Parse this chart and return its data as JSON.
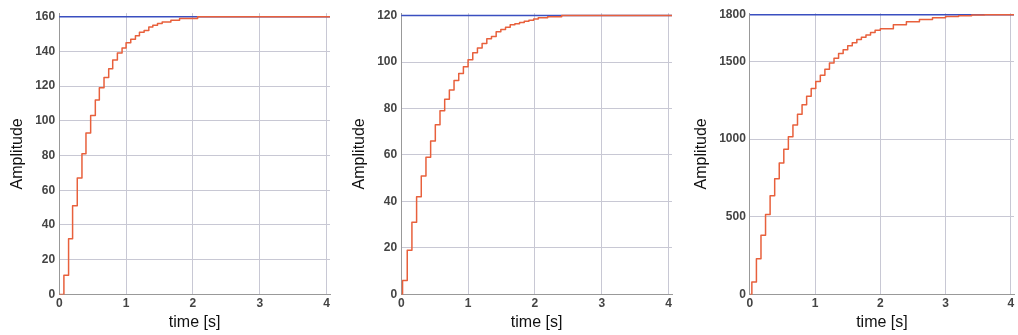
{
  "chart_data": [
    {
      "type": "step",
      "xlabel": "time [s]",
      "ylabel": "Amplitude",
      "xlim": [
        0,
        4.05
      ],
      "xticks": [
        0,
        1,
        2,
        3,
        4
      ],
      "ylim": [
        0,
        162
      ],
      "yticks": [
        0,
        20,
        40,
        60,
        80,
        100,
        120,
        140,
        160
      ],
      "grid": true,
      "legend": false,
      "series": [
        {
          "color": "#e8603c",
          "x": [
            0,
            0.07,
            0.14,
            0.2,
            0.27,
            0.34,
            0.4,
            0.47,
            0.54,
            0.6,
            0.67,
            0.74,
            0.8,
            0.87,
            0.94,
            1.0,
            1.07,
            1.14,
            1.2,
            1.27,
            1.34,
            1.4,
            1.47,
            1.54,
            1.6,
            1.67,
            1.74,
            1.8,
            1.87,
            1.94,
            2.0,
            2.07,
            2.14,
            2.2,
            4.05
          ],
          "values": [
            0,
            11,
            32,
            51,
            67,
            81,
            93,
            103,
            112,
            119,
            125,
            130,
            135,
            139,
            142,
            145,
            147,
            149,
            151,
            152,
            154,
            155,
            156,
            157,
            157,
            158,
            158,
            159,
            159,
            159,
            159,
            160,
            160,
            160,
            160
          ]
        }
      ],
      "ref_lines": [
        {
          "axis": "y",
          "value": 160,
          "color": "#3a4fc0"
        }
      ]
    },
    {
      "type": "step",
      "xlabel": "time [s]",
      "ylabel": "Amplitude",
      "xlim": [
        0,
        4.05
      ],
      "xticks": [
        0,
        1,
        2,
        3,
        4
      ],
      "ylim": [
        0,
        121
      ],
      "yticks": [
        0,
        20,
        40,
        60,
        80,
        100,
        120
      ],
      "grid": true,
      "legend": false,
      "series": [
        {
          "color": "#e8603c",
          "x": [
            0,
            0.02,
            0.09,
            0.16,
            0.23,
            0.3,
            0.37,
            0.44,
            0.51,
            0.58,
            0.65,
            0.72,
            0.79,
            0.86,
            0.93,
            1.0,
            1.07,
            1.14,
            1.21,
            1.28,
            1.35,
            1.42,
            1.49,
            1.56,
            1.63,
            1.7,
            1.77,
            1.84,
            1.91,
            1.98,
            2.05,
            2.12,
            2.19,
            2.26,
            2.33,
            2.4,
            2.47,
            2.54,
            2.61,
            2.7,
            4.05
          ],
          "values": [
            0,
            6,
            19,
            31,
            42,
            51,
            59,
            66,
            73,
            79,
            84,
            88,
            92,
            95,
            98,
            101,
            104,
            106,
            108,
            110,
            111,
            113,
            114,
            115,
            116,
            116.5,
            117,
            117.5,
            118,
            118.5,
            119,
            119,
            119.5,
            119.5,
            119.5,
            120,
            120,
            120,
            120,
            120,
            120
          ]
        }
      ],
      "ref_lines": [
        {
          "axis": "y",
          "value": 120,
          "color": "#3a4fc0"
        }
      ]
    },
    {
      "type": "step",
      "xlabel": "time [s]",
      "ylabel": "Amplitude",
      "xlim": [
        0,
        4.05
      ],
      "xticks": [
        0,
        1,
        2,
        3,
        4
      ],
      "ylim": [
        0,
        1810
      ],
      "yticks": [
        0,
        500,
        1000,
        1500,
        1800
      ],
      "grid": true,
      "legend": false,
      "series": [
        {
          "color": "#e8603c",
          "x": [
            0,
            0.03,
            0.1,
            0.17,
            0.24,
            0.31,
            0.38,
            0.45,
            0.52,
            0.59,
            0.66,
            0.73,
            0.8,
            0.87,
            0.94,
            1.01,
            1.08,
            1.15,
            1.22,
            1.29,
            1.36,
            1.43,
            1.5,
            1.57,
            1.64,
            1.71,
            1.78,
            1.85,
            1.92,
            2.0,
            2.2,
            2.4,
            2.6,
            2.8,
            3.0,
            3.2,
            3.4,
            3.6,
            4.05
          ],
          "values": [
            0,
            80,
            230,
            380,
            515,
            635,
            745,
            845,
            935,
            1015,
            1090,
            1160,
            1220,
            1275,
            1325,
            1370,
            1410,
            1450,
            1490,
            1520,
            1550,
            1575,
            1600,
            1620,
            1640,
            1655,
            1670,
            1685,
            1700,
            1710,
            1735,
            1755,
            1770,
            1780,
            1788,
            1794,
            1798,
            1800,
            1800
          ]
        }
      ],
      "ref_lines": [
        {
          "axis": "y",
          "value": 1800,
          "color": "#3a4fc0"
        }
      ]
    }
  ]
}
